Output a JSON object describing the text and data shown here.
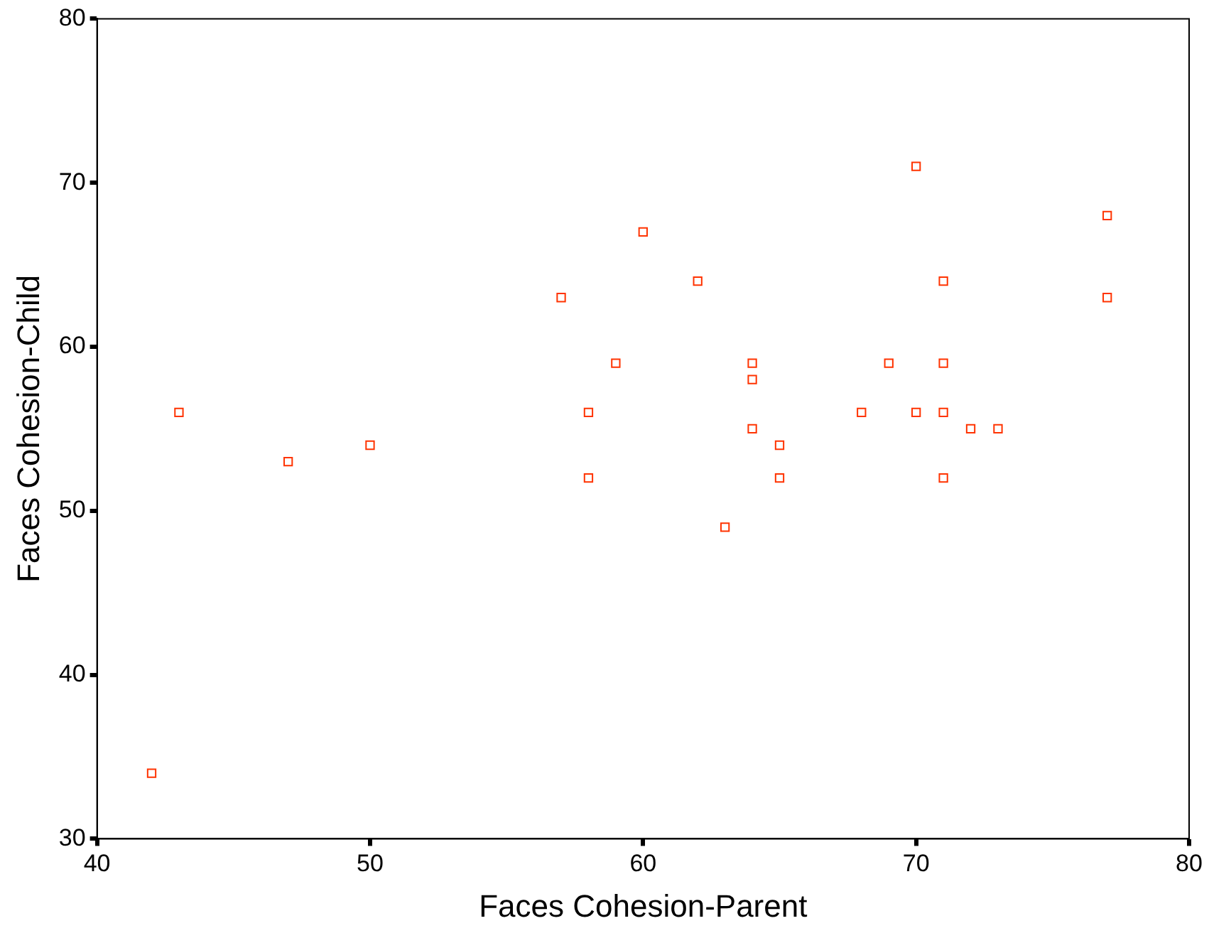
{
  "chart_data": {
    "type": "scatter",
    "xlabel": "Faces Cohesion-Parent",
    "ylabel": "Faces Cohesion-Child",
    "x": [
      43,
      42,
      47,
      50,
      57,
      58,
      58,
      59,
      60,
      62,
      63,
      64,
      64,
      64,
      65,
      65,
      68,
      69,
      70,
      70,
      71,
      71,
      71,
      71,
      72,
      73,
      77,
      77
    ],
    "values": [
      56,
      34,
      53,
      54,
      63,
      56,
      52,
      59,
      67,
      64,
      49,
      59,
      58,
      55,
      54,
      52,
      56,
      59,
      71,
      56,
      64,
      59,
      56,
      52,
      55,
      55,
      68,
      63
    ],
    "color": "#ff3300",
    "marker": "square",
    "xlim": [
      40,
      80
    ],
    "xticks": [
      40,
      50,
      60,
      70,
      80
    ],
    "ylim": [
      30,
      80
    ],
    "yticks": [
      30,
      40,
      50,
      60,
      70,
      80
    ],
    "grid": false,
    "legend": false
  }
}
